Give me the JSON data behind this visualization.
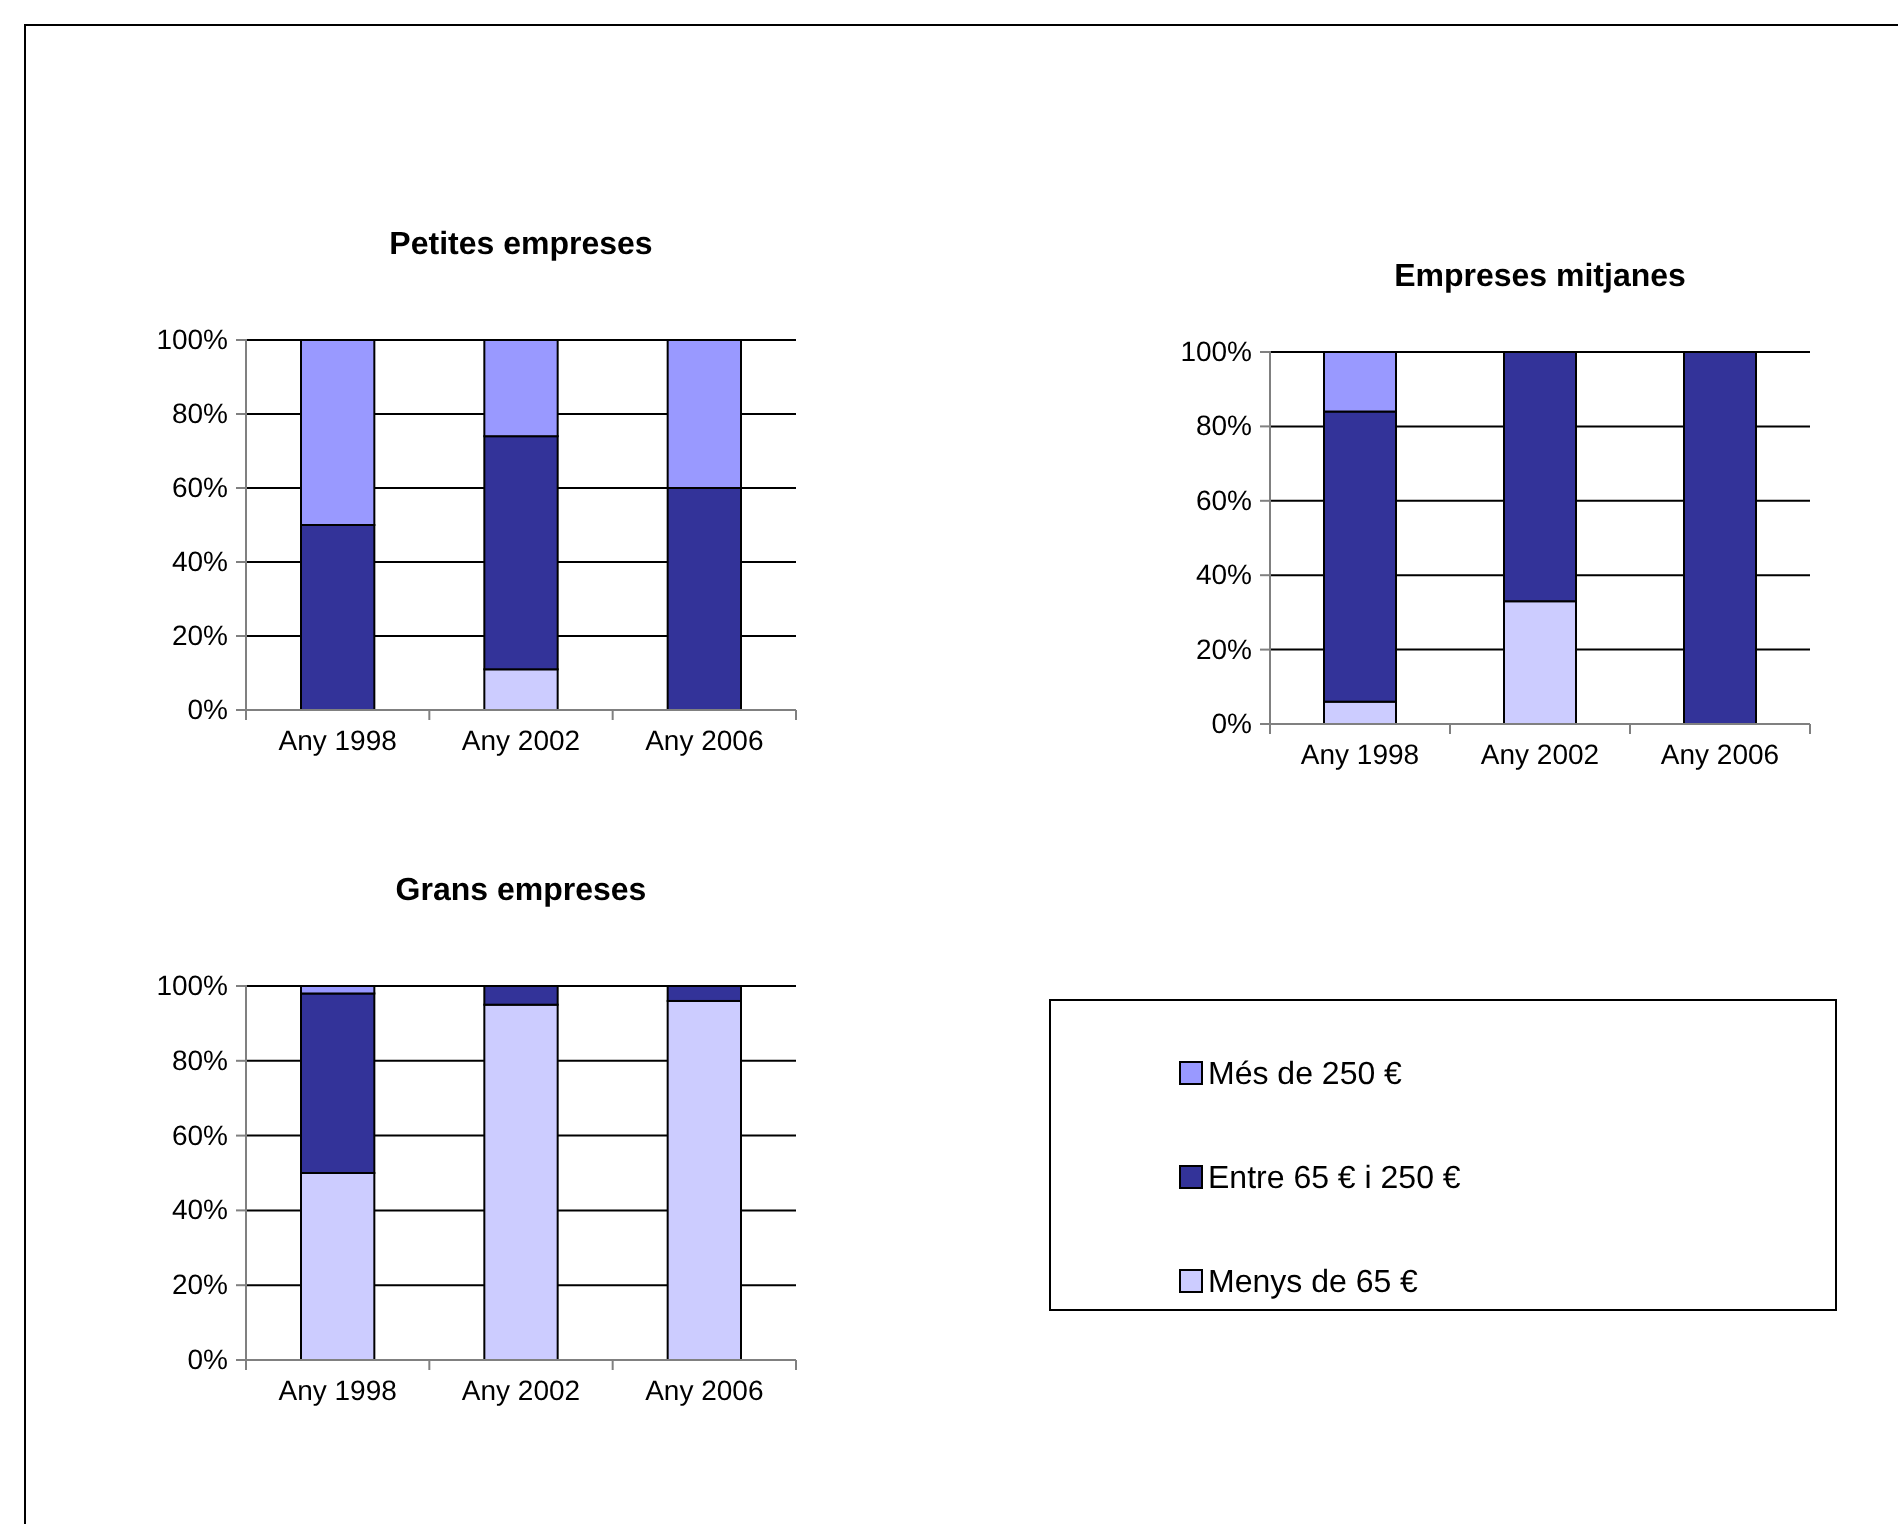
{
  "chart_data": [
    {
      "type": "bar",
      "title": "Petites empreses",
      "stacked": true,
      "categories": [
        "Any 1998",
        "Any 2002",
        "Any 2006"
      ],
      "ylim": [
        0,
        100
      ],
      "yticks": [
        {
          "value": 0,
          "label": "0%"
        },
        {
          "value": 20,
          "label": "20%"
        },
        {
          "value": 40,
          "label": "40%"
        },
        {
          "value": 60,
          "label": "60%"
        },
        {
          "value": 80,
          "label": "80%"
        },
        {
          "value": 100,
          "label": "100%"
        }
      ],
      "grid": "y",
      "series": [
        {
          "color": "#ccccff",
          "values": [
            0,
            11,
            0
          ]
        },
        {
          "color": "#333399",
          "values": [
            50,
            63,
            60
          ]
        },
        {
          "color": "#9999ff",
          "values": [
            50,
            26,
            40
          ]
        }
      ]
    },
    {
      "type": "bar",
      "title": "Empreses mitjanes",
      "stacked": true,
      "categories": [
        "Any 1998",
        "Any 2002",
        "Any 2006"
      ],
      "ylim": [
        0,
        100
      ],
      "yticks": [
        {
          "value": 0,
          "label": "0%"
        },
        {
          "value": 20,
          "label": "20%"
        },
        {
          "value": 40,
          "label": "40%"
        },
        {
          "value": 60,
          "label": "60%"
        },
        {
          "value": 80,
          "label": "80%"
        },
        {
          "value": 100,
          "label": "100%"
        }
      ],
      "grid": "y",
      "series": [
        {
          "color": "#ccccff",
          "values": [
            6,
            33,
            0
          ]
        },
        {
          "color": "#333399",
          "values": [
            78,
            67,
            100
          ]
        },
        {
          "color": "#9999ff",
          "values": [
            16,
            0,
            0
          ]
        }
      ]
    },
    {
      "type": "bar",
      "title": "Grans empreses",
      "stacked": true,
      "categories": [
        "Any 1998",
        "Any 2002",
        "Any 2006"
      ],
      "ylim": [
        0,
        100
      ],
      "yticks": [
        {
          "value": 0,
          "label": "0%"
        },
        {
          "value": 20,
          "label": "20%"
        },
        {
          "value": 40,
          "label": "40%"
        },
        {
          "value": 60,
          "label": "60%"
        },
        {
          "value": 80,
          "label": "80%"
        },
        {
          "value": 100,
          "label": "100%"
        }
      ],
      "grid": "y",
      "legend": "right",
      "series": [
        {
          "name": "Menys de 65 €",
          "color": "#ccccff",
          "values": [
            50,
            95,
            96
          ]
        },
        {
          "name": "Entre 65 € i 250 €",
          "color": "#333399",
          "values": [
            48,
            5,
            4
          ]
        },
        {
          "name": "Més de 250 €",
          "color": "#9999ff",
          "values": [
            2,
            0,
            0
          ]
        }
      ]
    }
  ]
}
